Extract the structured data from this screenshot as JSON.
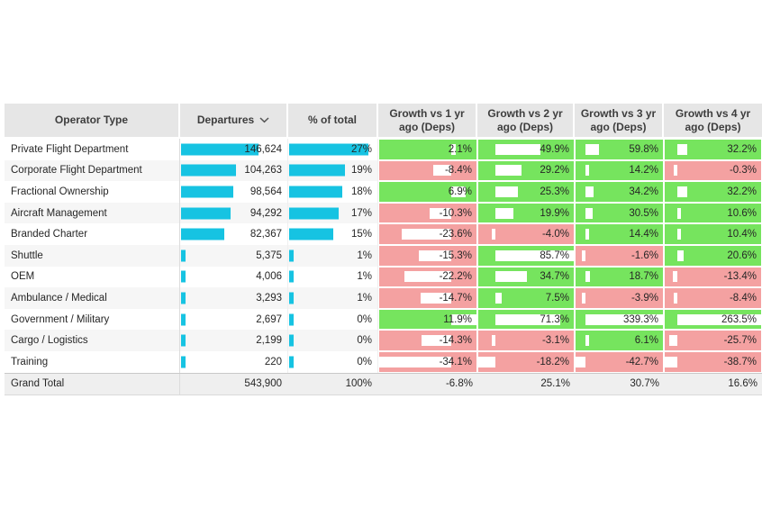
{
  "colors": {
    "positive_bg": "#76e45e",
    "negative_bg": "#f4a1a1",
    "databar_cyan": "#16c3e2",
    "header_bg": "#e6e6e6",
    "grand_total_bg": "#efefef",
    "text": "#262626"
  },
  "sort": {
    "column": "Departures",
    "direction": "descending",
    "icon": "chevron-down-icon"
  },
  "chart_data": {
    "type": "table",
    "columns": [
      "Operator Type",
      "Departures",
      "% of total",
      "Growth vs 1 yr ago (Deps)",
      "Growth vs 2 yr ago (Deps)",
      "Growth vs 3 yr ago (Deps)",
      "Growth vs 4 yr ago (Deps)"
    ],
    "databar_note": "Departures and % of total show cyan data bars; growth columns show white data bars on green (positive) or red (negative) cells with per-column zero axis",
    "rows": [
      {
        "operator_type": "Private Flight Department",
        "departures": 146624,
        "departures_text": "146,624",
        "pct_of_total": 27,
        "pct_text": "27%",
        "growth": [
          2.1,
          49.9,
          59.8,
          32.2
        ],
        "growth_text": [
          "2.1%",
          "49.9%",
          "59.8%",
          "32.2%"
        ]
      },
      {
        "operator_type": "Corporate Flight Department",
        "departures": 104263,
        "departures_text": "104,263",
        "pct_of_total": 19,
        "pct_text": "19%",
        "growth": [
          -8.4,
          29.2,
          14.2,
          -0.3
        ],
        "growth_text": [
          "-8.4%",
          "29.2%",
          "14.2%",
          "-0.3%"
        ]
      },
      {
        "operator_type": "Fractional Ownership",
        "departures": 98564,
        "departures_text": "98,564",
        "pct_of_total": 18,
        "pct_text": "18%",
        "growth": [
          6.9,
          25.3,
          34.2,
          32.2
        ],
        "growth_text": [
          "6.9%",
          "25.3%",
          "34.2%",
          "32.2%"
        ]
      },
      {
        "operator_type": "Aircraft Management",
        "departures": 94292,
        "departures_text": "94,292",
        "pct_of_total": 17,
        "pct_text": "17%",
        "growth": [
          -10.3,
          19.9,
          30.5,
          10.6
        ],
        "growth_text": [
          "-10.3%",
          "19.9%",
          "30.5%",
          "10.6%"
        ]
      },
      {
        "operator_type": "Branded Charter",
        "departures": 82367,
        "departures_text": "82,367",
        "pct_of_total": 15,
        "pct_text": "15%",
        "growth": [
          -23.6,
          -4.0,
          14.4,
          10.4
        ],
        "growth_text": [
          "-23.6%",
          "-4.0%",
          "14.4%",
          "10.4%"
        ]
      },
      {
        "operator_type": "Shuttle",
        "departures": 5375,
        "departures_text": "5,375",
        "pct_of_total": 1,
        "pct_text": "1%",
        "growth": [
          -15.3,
          85.7,
          -1.6,
          20.6
        ],
        "growth_text": [
          "-15.3%",
          "85.7%",
          "-1.6%",
          "20.6%"
        ]
      },
      {
        "operator_type": "OEM",
        "departures": 4006,
        "departures_text": "4,006",
        "pct_of_total": 1,
        "pct_text": "1%",
        "growth": [
          -22.2,
          34.7,
          18.7,
          -13.4
        ],
        "growth_text": [
          "-22.2%",
          "34.7%",
          "18.7%",
          "-13.4%"
        ]
      },
      {
        "operator_type": "Ambulance / Medical",
        "departures": 3293,
        "departures_text": "3,293",
        "pct_of_total": 1,
        "pct_text": "1%",
        "growth": [
          -14.7,
          7.5,
          -3.9,
          -8.4
        ],
        "growth_text": [
          "-14.7%",
          "7.5%",
          "-3.9%",
          "-8.4%"
        ]
      },
      {
        "operator_type": "Government / Military",
        "departures": 2697,
        "departures_text": "2,697",
        "pct_of_total": 0,
        "pct_text": "0%",
        "growth": [
          11.9,
          71.3,
          339.3,
          263.5
        ],
        "growth_text": [
          "11.9%",
          "71.3%",
          "339.3%",
          "263.5%"
        ]
      },
      {
        "operator_type": "Cargo / Logistics",
        "departures": 2199,
        "departures_text": "2,199",
        "pct_of_total": 0,
        "pct_text": "0%",
        "growth": [
          -14.3,
          -3.1,
          6.1,
          -25.7
        ],
        "growth_text": [
          "-14.3%",
          "-3.1%",
          "6.1%",
          "-25.7%"
        ]
      },
      {
        "operator_type": "Training",
        "departures": 220,
        "departures_text": "220",
        "pct_of_total": 0,
        "pct_text": "0%",
        "growth": [
          -34.1,
          -18.2,
          -42.7,
          -38.7
        ],
        "growth_text": [
          "-34.1%",
          "-18.2%",
          "-42.7%",
          "-38.7%"
        ]
      }
    ],
    "grand_total": {
      "operator_type": "Grand Total",
      "departures": 543900,
      "departures_text": "543,900",
      "pct_of_total": 100,
      "pct_text": "100%",
      "growth": [
        -6.8,
        25.1,
        30.7,
        16.6
      ],
      "growth_text": [
        "-6.8%",
        "25.1%",
        "30.7%",
        "16.6%"
      ]
    }
  }
}
